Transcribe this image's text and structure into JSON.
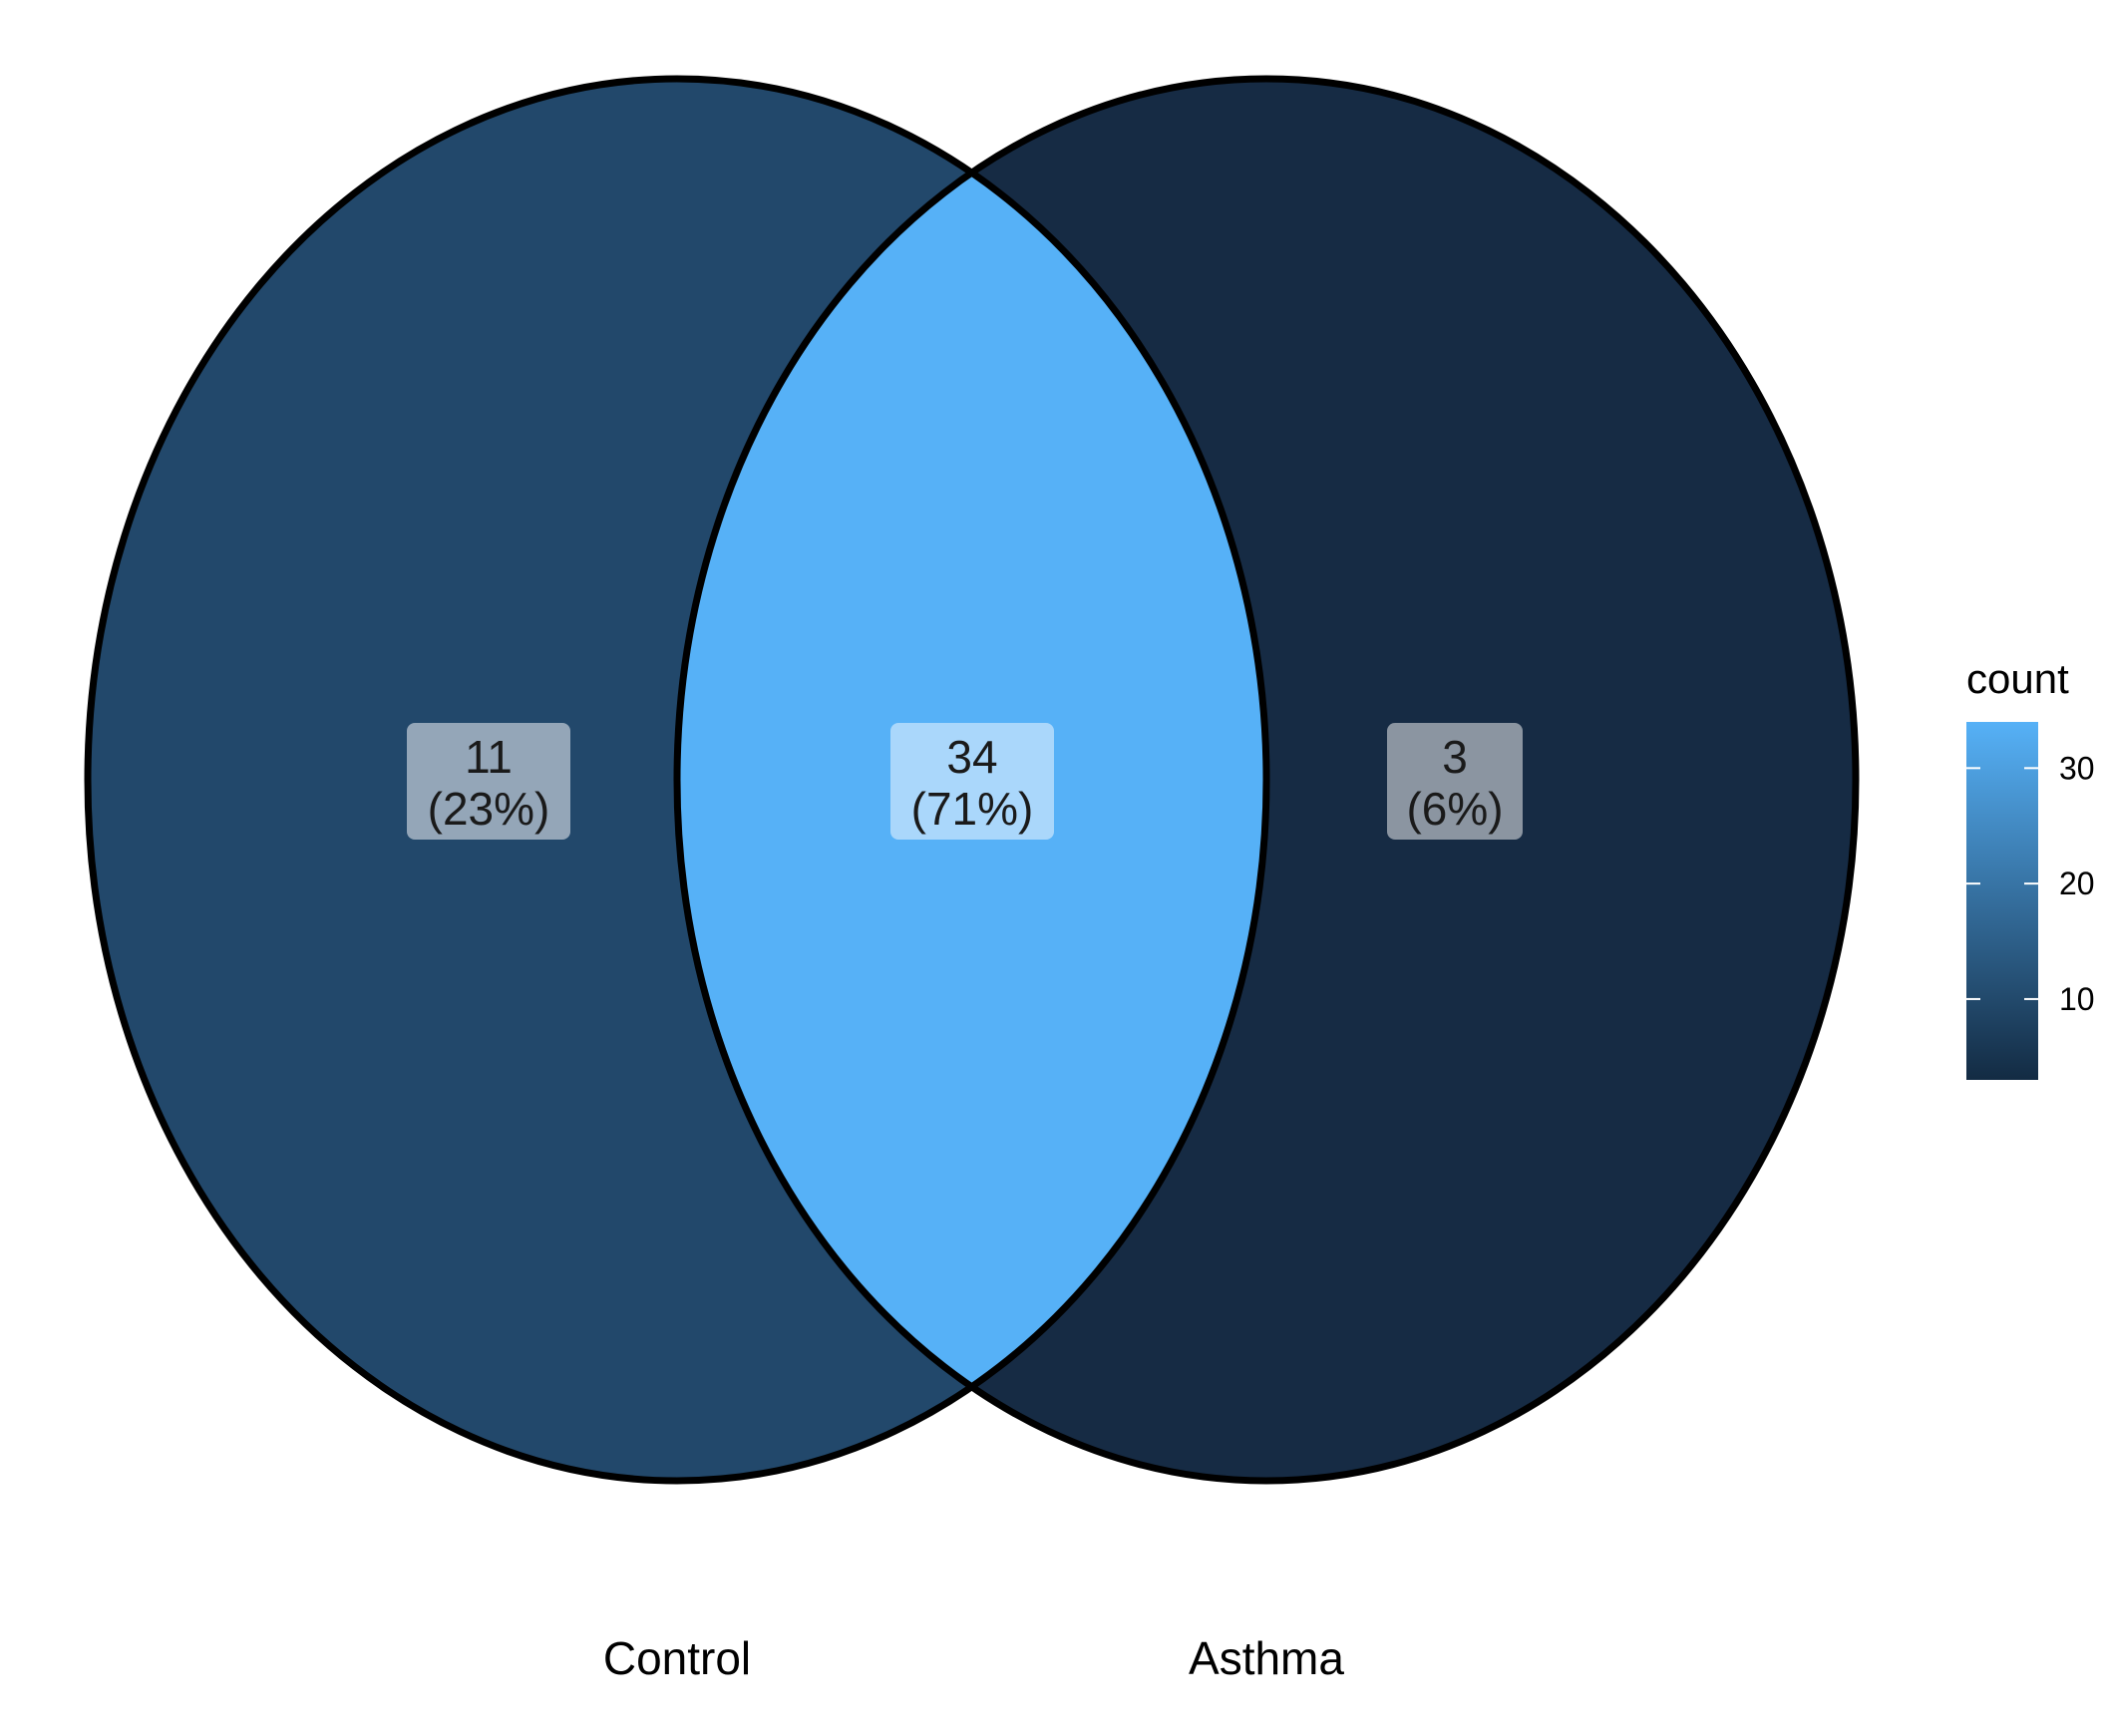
{
  "chart_data": {
    "type": "venn",
    "sets": [
      {
        "name": "Control",
        "fill": "#22486b"
      },
      {
        "name": "Asthma",
        "fill": "#162b44"
      }
    ],
    "regions": [
      {
        "id": "control-only",
        "sets": [
          "Control"
        ],
        "count": "11",
        "percent": "(23%)",
        "fill": "#22486b",
        "label_box": "#94a6b8"
      },
      {
        "id": "intersection",
        "sets": [
          "Control",
          "Asthma"
        ],
        "count": "34",
        "percent": "(71%)",
        "fill": "#56b1f7",
        "label_box": "#aad7fb"
      },
      {
        "id": "asthma-only",
        "sets": [
          "Asthma"
        ],
        "count": "3",
        "percent": "(6%)",
        "fill": "#162b44",
        "label_box": "#8b95a1"
      }
    ],
    "legend": {
      "title": "count",
      "ticks": [
        {
          "value": 30,
          "label": "30"
        },
        {
          "value": 20,
          "label": "20"
        },
        {
          "value": 10,
          "label": "10"
        }
      ],
      "range": [
        3,
        34
      ],
      "colors": {
        "low": "#132b43",
        "high": "#56b1f7"
      },
      "placement": "right"
    },
    "outline_color": "#000000"
  }
}
